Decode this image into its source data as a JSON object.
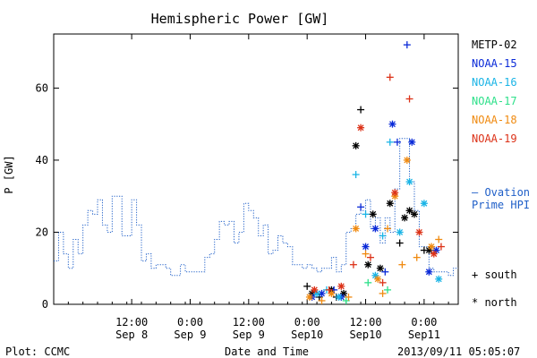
{
  "chart_data": {
    "type": "scatter",
    "title": "Hemispheric Power [GW]",
    "ylabel": "P [GW]",
    "xlabel": "Date and Time",
    "ylim": [
      0,
      75
    ],
    "yticks": [
      0,
      20,
      40,
      60
    ],
    "xlim": [
      "2013-09-07 20:00",
      "2013-09-11 07:00"
    ],
    "xticks": [
      {
        "t": "2013-09-08 12:00",
        "top": "12:00",
        "bottom": "Sep 8"
      },
      {
        "t": "2013-09-09 00:00",
        "top": "0:00",
        "bottom": "Sep 9"
      },
      {
        "t": "2013-09-09 12:00",
        "top": "12:00",
        "bottom": "Sep 9"
      },
      {
        "t": "2013-09-10 00:00",
        "top": "0:00",
        "bottom": "Sep10"
      },
      {
        "t": "2013-09-10 12:00",
        "top": "12:00",
        "bottom": "Sep10"
      },
      {
        "t": "2013-09-11 00:00",
        "top": "0:00",
        "bottom": "Sep11"
      }
    ],
    "ovation": {
      "name": "Ovation Prime HPI",
      "color": "#1f5fc8",
      "points": [
        [
          "2013-09-07 20:00",
          12
        ],
        [
          "2013-09-07 21:00",
          20
        ],
        [
          "2013-09-07 22:00",
          14
        ],
        [
          "2013-09-07 23:00",
          10
        ],
        [
          "2013-09-08 00:00",
          18
        ],
        [
          "2013-09-08 01:00",
          14
        ],
        [
          "2013-09-08 02:00",
          22
        ],
        [
          "2013-09-08 03:00",
          26
        ],
        [
          "2013-09-08 04:00",
          25
        ],
        [
          "2013-09-08 05:00",
          29
        ],
        [
          "2013-09-08 06:00",
          22
        ],
        [
          "2013-09-08 07:00",
          20
        ],
        [
          "2013-09-08 08:00",
          30
        ],
        [
          "2013-09-08 09:00",
          30
        ],
        [
          "2013-09-08 10:00",
          19
        ],
        [
          "2013-09-08 11:00",
          19
        ],
        [
          "2013-09-08 12:00",
          29
        ],
        [
          "2013-09-08 13:00",
          22
        ],
        [
          "2013-09-08 14:00",
          12
        ],
        [
          "2013-09-08 15:00",
          14
        ],
        [
          "2013-09-08 16:00",
          10
        ],
        [
          "2013-09-08 17:00",
          11
        ],
        [
          "2013-09-08 18:00",
          11
        ],
        [
          "2013-09-08 19:00",
          10
        ],
        [
          "2013-09-08 20:00",
          8
        ],
        [
          "2013-09-08 21:00",
          8
        ],
        [
          "2013-09-08 22:00",
          11
        ],
        [
          "2013-09-08 23:00",
          9
        ],
        [
          "2013-09-09 00:00",
          9
        ],
        [
          "2013-09-09 01:00",
          9
        ],
        [
          "2013-09-09 02:00",
          9
        ],
        [
          "2013-09-09 03:00",
          13
        ],
        [
          "2013-09-09 04:00",
          14
        ],
        [
          "2013-09-09 05:00",
          18
        ],
        [
          "2013-09-09 06:00",
          23
        ],
        [
          "2013-09-09 07:00",
          22
        ],
        [
          "2013-09-09 08:00",
          23
        ],
        [
          "2013-09-09 09:00",
          17
        ],
        [
          "2013-09-09 10:00",
          20
        ],
        [
          "2013-09-09 11:00",
          28
        ],
        [
          "2013-09-09 12:00",
          26
        ],
        [
          "2013-09-09 13:00",
          24
        ],
        [
          "2013-09-09 14:00",
          19
        ],
        [
          "2013-09-09 15:00",
          22
        ],
        [
          "2013-09-09 16:00",
          14
        ],
        [
          "2013-09-09 17:00",
          15
        ],
        [
          "2013-09-09 18:00",
          19
        ],
        [
          "2013-09-09 19:00",
          17
        ],
        [
          "2013-09-09 20:00",
          16
        ],
        [
          "2013-09-09 21:00",
          11
        ],
        [
          "2013-09-09 22:00",
          11
        ],
        [
          "2013-09-09 23:00",
          10
        ],
        [
          "2013-09-10 00:00",
          11
        ],
        [
          "2013-09-10 01:00",
          10
        ],
        [
          "2013-09-10 02:00",
          9
        ],
        [
          "2013-09-10 03:00",
          10
        ],
        [
          "2013-09-10 04:00",
          10
        ],
        [
          "2013-09-10 05:00",
          13
        ],
        [
          "2013-09-10 06:00",
          9
        ],
        [
          "2013-09-10 07:00",
          11
        ],
        [
          "2013-09-10 08:00",
          20
        ],
        [
          "2013-09-10 09:00",
          21
        ],
        [
          "2013-09-10 10:00",
          25
        ],
        [
          "2013-09-10 11:00",
          26
        ],
        [
          "2013-09-10 12:00",
          29
        ],
        [
          "2013-09-10 13:00",
          21
        ],
        [
          "2013-09-10 14:00",
          24
        ],
        [
          "2013-09-10 15:00",
          17
        ],
        [
          "2013-09-10 16:00",
          24
        ],
        [
          "2013-09-10 17:00",
          20
        ],
        [
          "2013-09-10 18:00",
          32
        ],
        [
          "2013-09-10 19:00",
          46
        ],
        [
          "2013-09-10 20:00",
          46
        ],
        [
          "2013-09-10 21:00",
          34
        ],
        [
          "2013-09-10 22:00",
          26
        ],
        [
          "2013-09-10 23:00",
          16
        ],
        [
          "2013-09-11 00:00",
          16
        ],
        [
          "2013-09-11 01:00",
          10
        ],
        [
          "2013-09-11 02:00",
          9
        ],
        [
          "2013-09-11 03:00",
          9
        ],
        [
          "2013-09-11 04:00",
          9
        ],
        [
          "2013-09-11 05:00",
          8
        ],
        [
          "2013-09-11 06:00",
          10
        ]
      ]
    },
    "series": [
      {
        "name": "METP-02",
        "color": "#000000",
        "points": [
          [
            "2013-09-10 00:00",
            5,
            "+"
          ],
          [
            "2013-09-10 01:00",
            3,
            "*"
          ],
          [
            "2013-09-10 02:30",
            2,
            "+"
          ],
          [
            "2013-09-10 05:00",
            4,
            "*"
          ],
          [
            "2013-09-10 06:00",
            2,
            "+"
          ],
          [
            "2013-09-10 07:30",
            3,
            "*"
          ],
          [
            "2013-09-10 10:00",
            44,
            "*"
          ],
          [
            "2013-09-10 11:00",
            54,
            "+"
          ],
          [
            "2013-09-10 12:30",
            11,
            "*"
          ],
          [
            "2013-09-10 13:30",
            25,
            "*"
          ],
          [
            "2013-09-10 15:00",
            10,
            "*"
          ],
          [
            "2013-09-10 17:00",
            28,
            "*"
          ],
          [
            "2013-09-10 19:00",
            17,
            "+"
          ],
          [
            "2013-09-10 20:00",
            24,
            "*"
          ],
          [
            "2013-09-10 21:00",
            26,
            "*"
          ],
          [
            "2013-09-10 22:00",
            25,
            "*"
          ],
          [
            "2013-09-11 00:00",
            15,
            "+"
          ],
          [
            "2013-09-11 01:00",
            15,
            "*"
          ]
        ]
      },
      {
        "name": "NOAA-15",
        "color": "#0a2ad8",
        "points": [
          [
            "2013-09-10 01:00",
            2,
            "*"
          ],
          [
            "2013-09-10 03:00",
            3,
            "*"
          ],
          [
            "2013-09-10 05:30",
            4,
            "+"
          ],
          [
            "2013-09-10 07:00",
            2,
            "*"
          ],
          [
            "2013-09-10 11:00",
            27,
            "+"
          ],
          [
            "2013-09-10 12:00",
            16,
            "*"
          ],
          [
            "2013-09-10 14:00",
            21,
            "*"
          ],
          [
            "2013-09-10 16:00",
            9,
            "+"
          ],
          [
            "2013-09-10 17:30",
            50,
            "*"
          ],
          [
            "2013-09-10 18:30",
            45,
            "+"
          ],
          [
            "2013-09-10 20:30",
            72,
            "+"
          ],
          [
            "2013-09-10 21:30",
            45,
            "*"
          ],
          [
            "2013-09-11 01:00",
            9,
            "*"
          ],
          [
            "2013-09-11 02:30",
            15,
            "*"
          ]
        ]
      },
      {
        "name": "NOAA-16",
        "color": "#1ab4e6",
        "points": [
          [
            "2013-09-10 02:00",
            3,
            "*"
          ],
          [
            "2013-09-10 04:00",
            4,
            "+"
          ],
          [
            "2013-09-10 06:30",
            2,
            "*"
          ],
          [
            "2013-09-10 10:00",
            36,
            "+"
          ],
          [
            "2013-09-10 12:00",
            25,
            "+"
          ],
          [
            "2013-09-10 14:00",
            8,
            "*"
          ],
          [
            "2013-09-10 15:30",
            19,
            "+"
          ],
          [
            "2013-09-10 17:00",
            45,
            "+"
          ],
          [
            "2013-09-10 19:00",
            20,
            "*"
          ],
          [
            "2013-09-10 21:00",
            34,
            "*"
          ],
          [
            "2013-09-11 00:00",
            28,
            "*"
          ],
          [
            "2013-09-11 03:00",
            7,
            "*"
          ]
        ]
      },
      {
        "name": "NOAA-17",
        "color": "#2ee08a",
        "points": [
          [
            "2013-09-10 08:00",
            1,
            "+"
          ],
          [
            "2013-09-10 12:30",
            6,
            "+"
          ],
          [
            "2013-09-10 16:30",
            4,
            "+"
          ]
        ]
      },
      {
        "name": "NOAA-18",
        "color": "#f08a10",
        "points": [
          [
            "2013-09-10 00:30",
            2,
            "*"
          ],
          [
            "2013-09-10 03:00",
            1,
            "+"
          ],
          [
            "2013-09-10 05:00",
            3,
            "*"
          ],
          [
            "2013-09-10 08:30",
            2,
            "+"
          ],
          [
            "2013-09-10 10:00",
            21,
            "*"
          ],
          [
            "2013-09-10 12:00",
            14,
            "+"
          ],
          [
            "2013-09-10 14:30",
            7,
            "*"
          ],
          [
            "2013-09-10 15:30",
            3,
            "+"
          ],
          [
            "2013-09-10 16:30",
            21,
            "+"
          ],
          [
            "2013-09-10 18:00",
            30,
            "*"
          ],
          [
            "2013-09-10 19:30",
            11,
            "+"
          ],
          [
            "2013-09-10 20:30",
            40,
            "*"
          ],
          [
            "2013-09-10 22:30",
            13,
            "+"
          ],
          [
            "2013-09-11 01:30",
            16,
            "*"
          ],
          [
            "2013-09-11 03:00",
            18,
            "+"
          ]
        ]
      },
      {
        "name": "NOAA-19",
        "color": "#dc3218",
        "points": [
          [
            "2013-09-10 01:30",
            4,
            "*"
          ],
          [
            "2013-09-10 04:30",
            4,
            "+"
          ],
          [
            "2013-09-10 07:00",
            5,
            "*"
          ],
          [
            "2013-09-10 09:30",
            11,
            "+"
          ],
          [
            "2013-09-10 11:00",
            49,
            "*"
          ],
          [
            "2013-09-10 13:00",
            13,
            "+"
          ],
          [
            "2013-09-10 15:30",
            6,
            "+"
          ],
          [
            "2013-09-10 17:00",
            63,
            "+"
          ],
          [
            "2013-09-10 18:00",
            31,
            "*"
          ],
          [
            "2013-09-10 21:00",
            57,
            "+"
          ],
          [
            "2013-09-10 23:00",
            20,
            "*"
          ],
          [
            "2013-09-11 02:00",
            14,
            "*"
          ],
          [
            "2013-09-11 03:30",
            16,
            "+"
          ]
        ]
      }
    ],
    "legend_placement": "right",
    "marker_key": [
      {
        "symbol": "+",
        "label": "south"
      },
      {
        "symbol": "*",
        "label": "north"
      }
    ]
  },
  "footer": {
    "left": "Plot: CCMC",
    "right": "2013/09/11 05:05:07"
  },
  "legend_ovation": {
    "line1": "– Ovation",
    "line2": "Prime HPI"
  },
  "marker_labels": {
    "south": "+ south",
    "north": "* north"
  }
}
